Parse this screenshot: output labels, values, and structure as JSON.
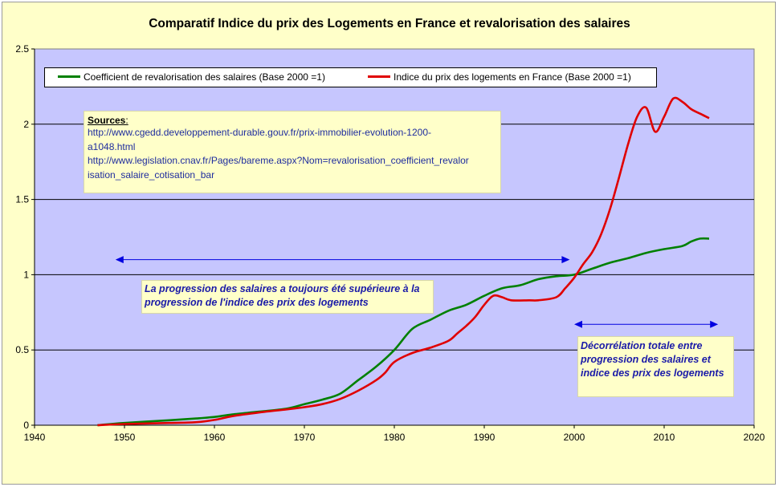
{
  "chart_data": {
    "type": "line",
    "title": "Comparatif Indice du prix des Logements en France et revalorisation des salaires",
    "xlabel": "",
    "ylabel": "",
    "xlim": [
      1940,
      2020
    ],
    "ylim": [
      0,
      2.5
    ],
    "x_ticks": [
      "1940",
      "1950",
      "1960",
      "1970",
      "1980",
      "1990",
      "2000",
      "2010",
      "2020"
    ],
    "y_ticks": [
      "0",
      "0.5",
      "1",
      "1.5",
      "2",
      "2.5"
    ],
    "grid": true,
    "legend_position": "top",
    "series": [
      {
        "name": "Coefficient de revalorisation des salaires (Base 2000 =1)",
        "color": "#008000",
        "points": [
          [
            1947,
            0.0
          ],
          [
            1950,
            0.015
          ],
          [
            1955,
            0.033
          ],
          [
            1958,
            0.045
          ],
          [
            1960,
            0.055
          ],
          [
            1962,
            0.072
          ],
          [
            1965,
            0.09
          ],
          [
            1968,
            0.11
          ],
          [
            1970,
            0.14
          ],
          [
            1972,
            0.17
          ],
          [
            1974,
            0.21
          ],
          [
            1976,
            0.3
          ],
          [
            1978,
            0.39
          ],
          [
            1980,
            0.5
          ],
          [
            1982,
            0.64
          ],
          [
            1984,
            0.7
          ],
          [
            1986,
            0.76
          ],
          [
            1988,
            0.8
          ],
          [
            1990,
            0.86
          ],
          [
            1992,
            0.91
          ],
          [
            1994,
            0.93
          ],
          [
            1996,
            0.97
          ],
          [
            1998,
            0.99
          ],
          [
            2000,
            1.0
          ],
          [
            2002,
            1.04
          ],
          [
            2004,
            1.08
          ],
          [
            2006,
            1.11
          ],
          [
            2008,
            1.145
          ],
          [
            2010,
            1.17
          ],
          [
            2012,
            1.19
          ],
          [
            2013,
            1.22
          ],
          [
            2014,
            1.24
          ],
          [
            2015,
            1.24
          ]
        ]
      },
      {
        "name": "Indice du prix des logements en France (Base 2000 =1)",
        "color": "#e00000",
        "points": [
          [
            1947,
            0.0
          ],
          [
            1950,
            0.008
          ],
          [
            1955,
            0.015
          ],
          [
            1958,
            0.02
          ],
          [
            1960,
            0.035
          ],
          [
            1962,
            0.06
          ],
          [
            1965,
            0.085
          ],
          [
            1968,
            0.105
          ],
          [
            1970,
            0.12
          ],
          [
            1972,
            0.14
          ],
          [
            1974,
            0.175
          ],
          [
            1976,
            0.23
          ],
          [
            1978,
            0.3
          ],
          [
            1979,
            0.35
          ],
          [
            1980,
            0.42
          ],
          [
            1982,
            0.48
          ],
          [
            1984,
            0.515
          ],
          [
            1986,
            0.56
          ],
          [
            1987,
            0.61
          ],
          [
            1988,
            0.66
          ],
          [
            1989,
            0.72
          ],
          [
            1990,
            0.8
          ],
          [
            1991,
            0.86
          ],
          [
            1992,
            0.85
          ],
          [
            1993,
            0.83
          ],
          [
            1995,
            0.83
          ],
          [
            1996,
            0.83
          ],
          [
            1998,
            0.85
          ],
          [
            1999,
            0.91
          ],
          [
            2000,
            0.98
          ],
          [
            2001,
            1.07
          ],
          [
            2002,
            1.15
          ],
          [
            2003,
            1.27
          ],
          [
            2004,
            1.44
          ],
          [
            2005,
            1.65
          ],
          [
            2006,
            1.87
          ],
          [
            2007,
            2.05
          ],
          [
            2008,
            2.11
          ],
          [
            2009,
            1.95
          ],
          [
            2010,
            2.05
          ],
          [
            2011,
            2.17
          ],
          [
            2012,
            2.15
          ],
          [
            2013,
            2.1
          ],
          [
            2014,
            2.07
          ],
          [
            2015,
            2.04
          ]
        ]
      }
    ],
    "arrows": [
      {
        "from": 1949,
        "to": 1999.5,
        "y": 1.1
      },
      {
        "from": 2000,
        "to": 2016,
        "y": 0.67
      }
    ]
  },
  "sources": {
    "heading": "Sources",
    "heading_suffix": ":",
    "urls": [
      "http://www.cgedd.developpement-durable.gouv.fr/prix-immobilier-evolution-1200-a1048.html",
      "http://www.legislation.cnav.fr/Pages/bareme.aspx?Nom=revalorisation_coefficient_revalorisation_salaire_cotisation_bar"
    ],
    "url_lines": [
      "http://www.cgedd.developpement-durable.gouv.fr/prix-immobilier-evolution-1200-",
      "a1048.html",
      "http://www.legislation.cnav.fr/Pages/bareme.aspx?Nom=revalorisation_coefficient_revalor",
      "isation_salaire_cotisation_bar"
    ]
  },
  "annotations": {
    "note1": [
      "La progression des salaires a toujours été supérieure à la",
      "progression de l'indice des prix des logements"
    ],
    "note2": [
      "Décorrélation totale entre",
      "progression des salaires et",
      "indice des prix des logements"
    ]
  },
  "colors": {
    "plot_background": "#c6c6fe",
    "chart_background": "#ffffc9",
    "arrow": "#0000e0"
  }
}
